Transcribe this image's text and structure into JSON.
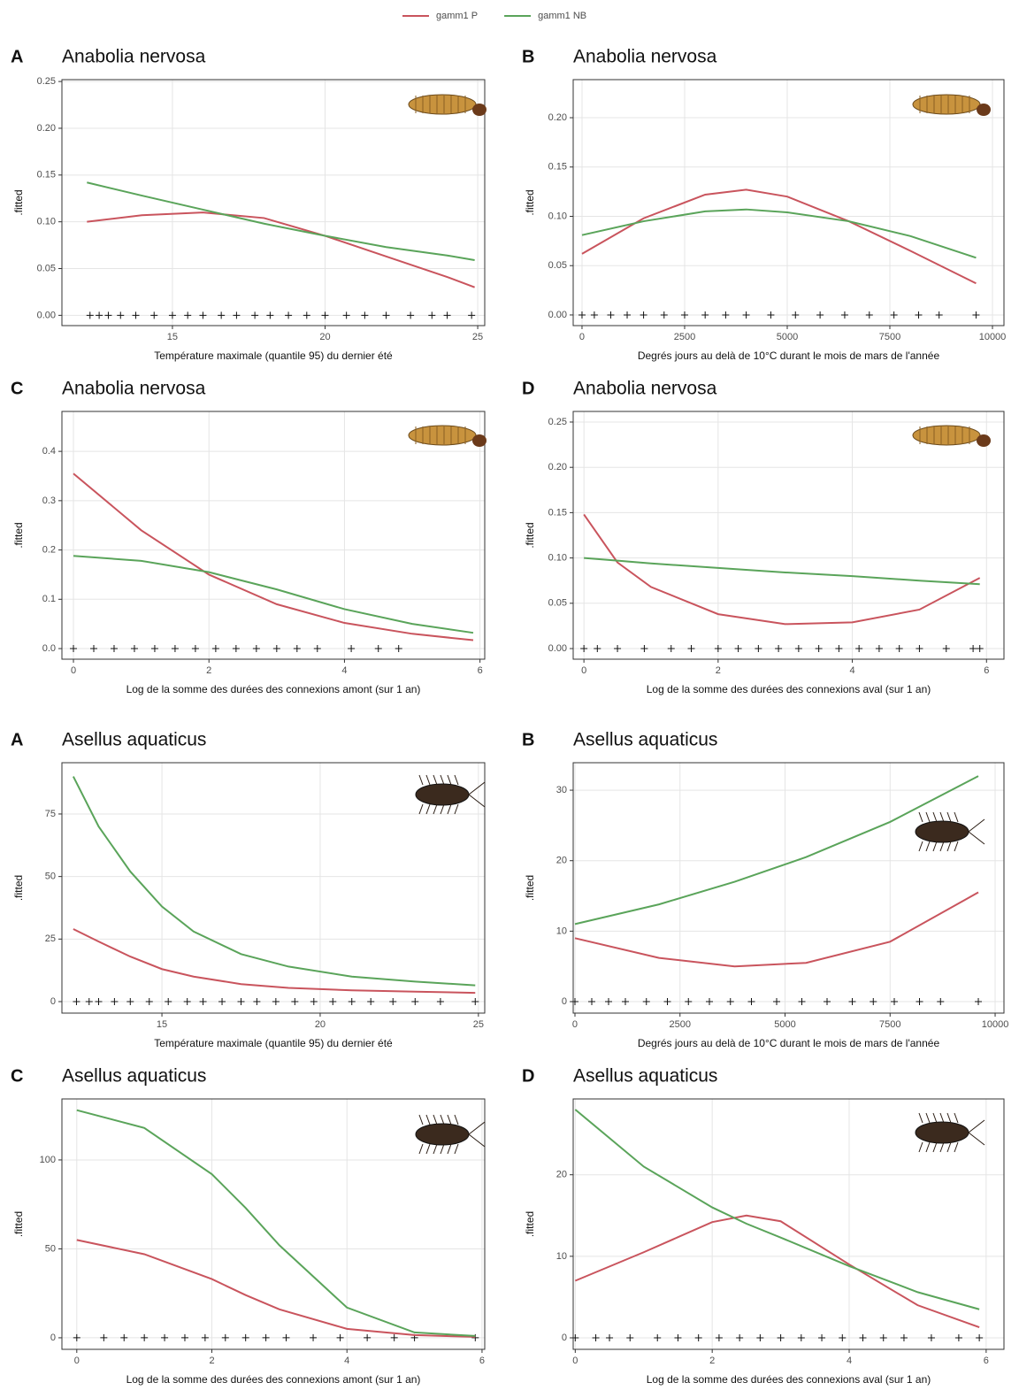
{
  "chart_data": [
    {
      "type": "line",
      "letter": "A",
      "title": "Anabolia nervosa",
      "xlabel": "Température maximale (quantile 95) du dernier été",
      "ylabel": ".fitted",
      "x": [
        12.2,
        14,
        16,
        18,
        20,
        22,
        24,
        24.9
      ],
      "series": [
        {
          "name": "gamm1 P",
          "color": "#c9545d",
          "values": [
            0.1,
            0.107,
            0.11,
            0.104,
            0.085,
            0.063,
            0.041,
            0.03
          ]
        },
        {
          "name": "gamm1 NB",
          "color": "#5aa45a",
          "values": [
            0.142,
            0.128,
            0.113,
            0.098,
            0.085,
            0.073,
            0.064,
            0.059
          ]
        }
      ],
      "xlim": [
        11.38,
        25.23
      ],
      "ylim": [
        -0.011,
        0.252
      ],
      "xticks": [
        15,
        20,
        25
      ],
      "yticks": [
        {
          "value": 0,
          "label": "0.00"
        },
        {
          "value": 0.05,
          "label": "0.05"
        },
        {
          "value": 0.1,
          "label": "0.10"
        },
        {
          "value": 0.15,
          "label": "0.15"
        },
        {
          "value": 0.2,
          "label": "0.20"
        },
        {
          "value": 0.25,
          "label": "0.25"
        }
      ],
      "rug": [
        12.3,
        12.6,
        12.9,
        13.3,
        13.8,
        14.4,
        15.0,
        15.5,
        16.0,
        16.6,
        17.1,
        17.7,
        18.2,
        18.8,
        19.4,
        20.0,
        20.7,
        21.3,
        22.0,
        22.8,
        23.5,
        24.0,
        24.8
      ]
    },
    {
      "type": "line",
      "letter": "B",
      "title": "Anabolia nervosa",
      "xlabel": "Degrés jours au delà de 10°C durant le mois de mars de l'année",
      "ylabel": ".fitted",
      "x": [
        0,
        1500,
        3000,
        4000,
        5000,
        6500,
        8000,
        9600
      ],
      "series": [
        {
          "name": "gamm1 P",
          "color": "#c9545d",
          "values": [
            0.062,
            0.098,
            0.122,
            0.127,
            0.12,
            0.095,
            0.065,
            0.032
          ]
        },
        {
          "name": "gamm1 NB",
          "color": "#5aa45a",
          "values": [
            0.081,
            0.095,
            0.105,
            0.107,
            0.104,
            0.095,
            0.08,
            0.058
          ]
        }
      ],
      "xlim": [
        -215,
        10280
      ],
      "ylim": [
        -0.0108,
        0.2386
      ],
      "xticks": [
        0,
        2500,
        5000,
        7500,
        10000
      ],
      "yticks": [
        {
          "value": 0,
          "label": "0.00"
        },
        {
          "value": 0.05,
          "label": "0.05"
        },
        {
          "value": 0.1,
          "label": "0.10"
        },
        {
          "value": 0.15,
          "label": "0.15"
        },
        {
          "value": 0.2,
          "label": "0.20"
        }
      ],
      "rug": [
        0,
        300,
        700,
        1100,
        1500,
        2000,
        2500,
        3000,
        3500,
        4000,
        4600,
        5200,
        5800,
        6400,
        7000,
        7600,
        8200,
        8700,
        9600
      ]
    },
    {
      "type": "line",
      "letter": "C",
      "title": "Anabolia nervosa",
      "xlabel": "Log de la somme des durées des connexions amont (sur 1 an)",
      "ylabel": ".fitted",
      "x": [
        0,
        1,
        2,
        3,
        4,
        5,
        5.9
      ],
      "series": [
        {
          "name": "gamm1 P",
          "color": "#c9545d",
          "values": [
            0.355,
            0.24,
            0.15,
            0.09,
            0.052,
            0.03,
            0.017
          ]
        },
        {
          "name": "gamm1 NB",
          "color": "#5aa45a",
          "values": [
            0.188,
            0.178,
            0.155,
            0.12,
            0.08,
            0.05,
            0.032
          ]
        }
      ],
      "xlim": [
        -0.17,
        6.07
      ],
      "ylim": [
        -0.0215,
        0.481
      ],
      "xticks": [
        0,
        2,
        4,
        6
      ],
      "yticks": [
        {
          "value": 0,
          "label": "0.0"
        },
        {
          "value": 0.1,
          "label": "0.1"
        },
        {
          "value": 0.2,
          "label": "0.2"
        },
        {
          "value": 0.3,
          "label": "0.3"
        },
        {
          "value": 0.4,
          "label": "0.4"
        }
      ],
      "rug": [
        0,
        0.3,
        0.6,
        0.9,
        1.2,
        1.5,
        1.8,
        2.1,
        2.4,
        2.7,
        3.0,
        3.3,
        3.6,
        4.1,
        4.5,
        4.8
      ]
    },
    {
      "type": "line",
      "letter": "D",
      "title": "Anabolia nervosa",
      "xlabel": "Log de la somme des durées des connexions aval (sur 1 an)",
      "ylabel": ".fitted",
      "x": [
        0,
        0.5,
        1,
        2,
        3,
        4,
        5,
        5.9
      ],
      "series": [
        {
          "name": "gamm1 P",
          "color": "#c9545d",
          "values": [
            0.148,
            0.095,
            0.068,
            0.038,
            0.027,
            0.029,
            0.043,
            0.078
          ]
        },
        {
          "name": "gamm1 NB",
          "color": "#5aa45a",
          "values": [
            0.1,
            0.097,
            0.094,
            0.089,
            0.084,
            0.08,
            0.075,
            0.071
          ]
        }
      ],
      "xlim": [
        -0.16,
        6.26
      ],
      "ylim": [
        -0.0117,
        0.2617
      ],
      "xticks": [
        0,
        2,
        4,
        6
      ],
      "yticks": [
        {
          "value": 0,
          "label": "0.00"
        },
        {
          "value": 0.05,
          "label": "0.05"
        },
        {
          "value": 0.1,
          "label": "0.10"
        },
        {
          "value": 0.15,
          "label": "0.15"
        },
        {
          "value": 0.2,
          "label": "0.20"
        },
        {
          "value": 0.25,
          "label": "0.25"
        }
      ],
      "rug": [
        0,
        0.2,
        0.5,
        0.9,
        1.3,
        1.6,
        2.0,
        2.3,
        2.6,
        2.9,
        3.2,
        3.5,
        3.8,
        4.1,
        4.4,
        4.7,
        5.0,
        5.4,
        5.8,
        5.9
      ]
    },
    {
      "type": "line",
      "letter": "A",
      "title": "Asellus aquaticus",
      "xlabel": "Température maximale (quantile 95) du dernier été",
      "ylabel": ".fitted",
      "x": [
        12.2,
        13,
        14,
        15,
        16,
        17.5,
        19,
        21,
        23,
        24.9
      ],
      "series": [
        {
          "name": "gamm1 P",
          "color": "#c9545d",
          "values": [
            29,
            24,
            18,
            13,
            10,
            7,
            5.5,
            4.5,
            4,
            3.5
          ]
        },
        {
          "name": "gamm1 NB",
          "color": "#5aa45a",
          "values": [
            90,
            70,
            52,
            38,
            28,
            19,
            14,
            10,
            8,
            6.5
          ]
        }
      ],
      "xlim": [
        11.84,
        25.2
      ],
      "ylim": [
        -4.6,
        95.5
      ],
      "xticks": [
        15,
        20,
        25
      ],
      "yticks": [
        0,
        25,
        50,
        75
      ],
      "rug": [
        12.3,
        12.7,
        13.0,
        13.5,
        14.0,
        14.6,
        15.2,
        15.8,
        16.3,
        16.9,
        17.5,
        18.0,
        18.6,
        19.2,
        19.8,
        20.4,
        21.0,
        21.6,
        22.3,
        23.0,
        23.8,
        24.9
      ]
    },
    {
      "type": "line",
      "letter": "B",
      "title": "Asellus aquaticus",
      "xlabel": "Degrés jours au delà de 10°C durant le mois de mars de l'année",
      "ylabel": ".fitted",
      "x": [
        0,
        2000,
        3800,
        5500,
        7500,
        9600
      ],
      "series": [
        {
          "name": "gamm1 P",
          "color": "#c9545d",
          "values": [
            9,
            6.2,
            5.0,
            5.5,
            8.5,
            15.5
          ]
        },
        {
          "name": "gamm1 NB",
          "color": "#5aa45a",
          "values": [
            11,
            13.8,
            17,
            20.5,
            25.5,
            32
          ]
        }
      ],
      "xlim": [
        -42,
        10210
      ],
      "ylim": [
        -1.63,
        33.9
      ],
      "xticks": [
        0,
        2500,
        5000,
        7500,
        10000
      ],
      "yticks": [
        0,
        10,
        20,
        30
      ],
      "rug": [
        0,
        400,
        800,
        1200,
        1700,
        2200,
        2700,
        3200,
        3700,
        4200,
        4800,
        5400,
        6000,
        6600,
        7100,
        7600,
        8200,
        8700,
        9600
      ]
    },
    {
      "type": "line",
      "letter": "C",
      "title": "Asellus aquaticus",
      "xlabel": "Log de la somme des durées des connexions amont (sur 1 an)",
      "ylabel": ".fitted",
      "x": [
        0,
        1,
        2,
        2.5,
        3,
        4,
        5,
        5.9
      ],
      "series": [
        {
          "name": "gamm1 P",
          "color": "#c9545d",
          "values": [
            55,
            47,
            33,
            24,
            16,
            5,
            1.5,
            0.5
          ]
        },
        {
          "name": "gamm1 NB",
          "color": "#5aa45a",
          "values": [
            128,
            118,
            92,
            73,
            52,
            17,
            3,
            1
          ]
        }
      ],
      "xlim": [
        -0.22,
        6.04
      ],
      "ylim": [
        -6.5,
        134.3
      ],
      "xticks": [
        0,
        2,
        4,
        6
      ],
      "yticks": [
        0,
        50,
        100
      ],
      "rug": [
        0,
        0.4,
        0.7,
        1.0,
        1.3,
        1.6,
        1.9,
        2.2,
        2.5,
        2.8,
        3.1,
        3.5,
        3.9,
        4.3,
        4.7,
        5.0,
        5.9
      ]
    },
    {
      "type": "line",
      "letter": "D",
      "title": "Asellus aquaticus",
      "xlabel": "Log de la somme des durées des connexions aval (sur 1 an)",
      "ylabel": ".fitted",
      "x": [
        0,
        1,
        2,
        2.5,
        3,
        4,
        5,
        5.9
      ],
      "series": [
        {
          "name": "gamm1 P",
          "color": "#c9545d",
          "values": [
            7,
            10.5,
            14.2,
            15,
            14.3,
            9,
            4,
            1.3
          ]
        },
        {
          "name": "gamm1 NB",
          "color": "#5aa45a",
          "values": [
            28,
            21,
            16,
            14,
            12.3,
            8.8,
            5.6,
            3.5
          ]
        }
      ],
      "xlim": [
        -0.03,
        6.26
      ],
      "ylim": [
        -1.41,
        29.3
      ],
      "xticks": [
        0,
        2,
        4,
        6
      ],
      "yticks": [
        0,
        10,
        20
      ],
      "rug": [
        0,
        0.3,
        0.5,
        0.8,
        1.2,
        1.5,
        1.8,
        2.1,
        2.4,
        2.7,
        3.0,
        3.3,
        3.6,
        3.9,
        4.2,
        4.5,
        4.8,
        5.2,
        5.6,
        5.9
      ]
    }
  ]
}
